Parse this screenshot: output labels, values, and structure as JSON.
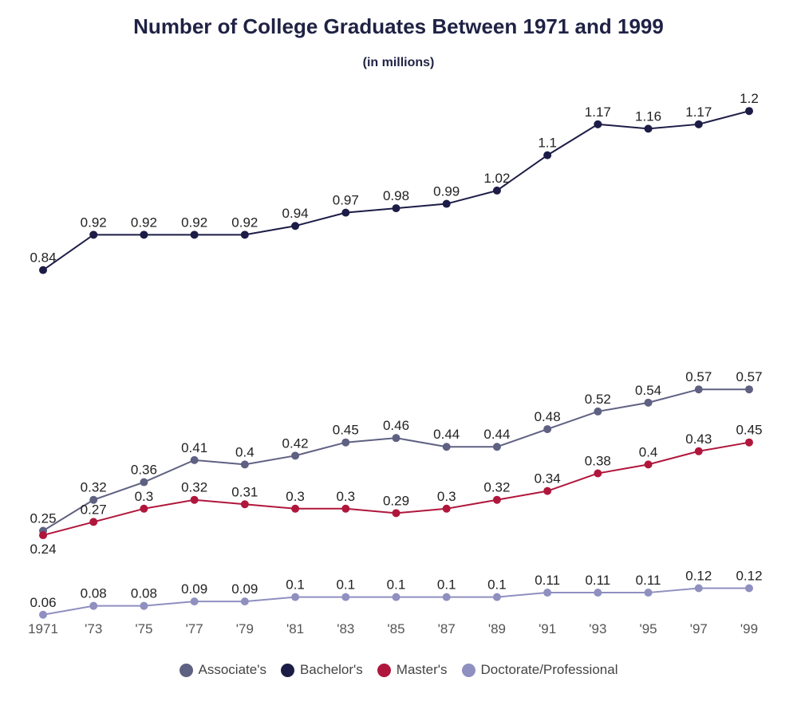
{
  "title": "Number of College Graduates Between 1971 and 1999",
  "subtitle": "(in millions)",
  "chart_data": {
    "type": "line",
    "categories": [
      "1971",
      "'73",
      "'75",
      "'77",
      "'79",
      "'81",
      "'83",
      "'85",
      "'87",
      "'89",
      "'91",
      "'93",
      "'95",
      "'97",
      "'99"
    ],
    "series": [
      {
        "name": "Associate's",
        "color": "#5f6182",
        "values": [
          0.25,
          0.32,
          0.36,
          0.41,
          0.4,
          0.42,
          0.45,
          0.46,
          0.44,
          0.44,
          0.48,
          0.52,
          0.54,
          0.57,
          0.57
        ]
      },
      {
        "name": "Bachelor's",
        "color": "#1c1c47",
        "values": [
          0.84,
          0.92,
          0.92,
          0.92,
          0.92,
          0.94,
          0.97,
          0.98,
          0.99,
          1.02,
          1.1,
          1.17,
          1.16,
          1.17,
          1.2
        ]
      },
      {
        "name": "Master's",
        "color": "#b0163c",
        "values": [
          0.24,
          0.27,
          0.3,
          0.32,
          0.31,
          0.3,
          0.3,
          0.29,
          0.3,
          0.32,
          0.34,
          0.38,
          0.4,
          0.43,
          0.45
        ]
      },
      {
        "name": "Doctorate/Professional",
        "color": "#8f8fc0",
        "values": [
          0.06,
          0.08,
          0.08,
          0.09,
          0.09,
          0.1,
          0.1,
          0.1,
          0.1,
          0.1,
          0.11,
          0.11,
          0.11,
          0.12,
          0.12
        ]
      }
    ],
    "ylim": [
      0,
      1.2
    ],
    "grid": false,
    "legend_position": "bottom"
  }
}
